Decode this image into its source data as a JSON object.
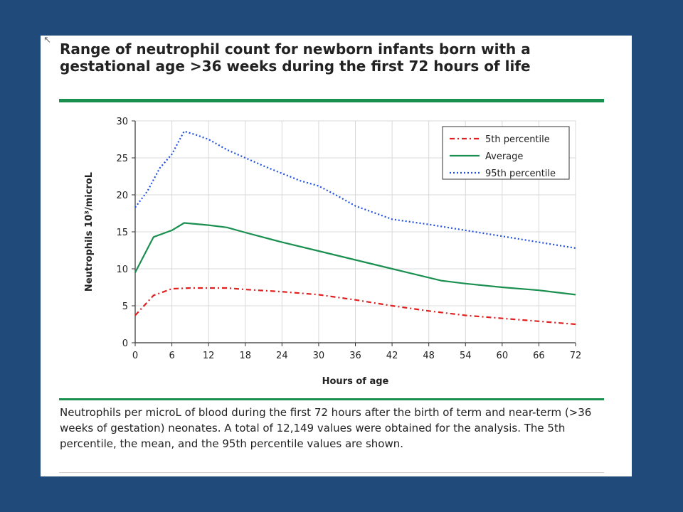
{
  "title": "Range of neutrophil count for newborn infants born with a gestational age >36 weeks during the first 72 hours of life",
  "caption": "Neutrophils per microL of blood during the first 72 hours after the birth of term and near-term (>36 weeks of gestation) neonates. A total of 12,149 values were obtained for the analysis. The 5th percentile, the mean, and the 95th percentile values are shown.",
  "colors": {
    "background": "#1f4a7a",
    "accent_rule": "#1a9050",
    "p5": "#e02020",
    "avg": "#1a9050",
    "p95": "#2050e0"
  },
  "chart_data": {
    "type": "line",
    "title": "",
    "xlabel": "Hours of age",
    "ylabel": "Neutrophils 10³/microL",
    "xlim": [
      0,
      72
    ],
    "ylim": [
      0,
      30
    ],
    "xticks": [
      0,
      6,
      12,
      18,
      24,
      30,
      36,
      42,
      48,
      54,
      60,
      66,
      72
    ],
    "yticks": [
      0,
      5,
      10,
      15,
      20,
      25,
      30
    ],
    "grid": true,
    "legend": "top-right",
    "series": [
      {
        "name": "5th percentile",
        "style": "dash-dot",
        "color": "#e02020",
        "points": [
          [
            0,
            3.7
          ],
          [
            3,
            6.4
          ],
          [
            6,
            7.3
          ],
          [
            9,
            7.4
          ],
          [
            12,
            7.4
          ],
          [
            15,
            7.4
          ],
          [
            18,
            7.2
          ],
          [
            24,
            6.9
          ],
          [
            30,
            6.5
          ],
          [
            36,
            5.8
          ],
          [
            42,
            5.0
          ],
          [
            48,
            4.3
          ],
          [
            54,
            3.7
          ],
          [
            60,
            3.3
          ],
          [
            66,
            2.9
          ],
          [
            72,
            2.5
          ]
        ]
      },
      {
        "name": "Average",
        "style": "solid",
        "color": "#1a9050",
        "points": [
          [
            0,
            9.5
          ],
          [
            3,
            14.3
          ],
          [
            6,
            15.2
          ],
          [
            8,
            16.2
          ],
          [
            12,
            15.9
          ],
          [
            15,
            15.6
          ],
          [
            18,
            14.9
          ],
          [
            24,
            13.6
          ],
          [
            30,
            12.4
          ],
          [
            36,
            11.2
          ],
          [
            42,
            10.0
          ],
          [
            50,
            8.4
          ],
          [
            54,
            8.0
          ],
          [
            60,
            7.5
          ],
          [
            66,
            7.1
          ],
          [
            72,
            6.5
          ]
        ]
      },
      {
        "name": "95th percentile",
        "style": "dotted",
        "color": "#2050e0",
        "points": [
          [
            0,
            18.3
          ],
          [
            2,
            20.5
          ],
          [
            4,
            23.6
          ],
          [
            6,
            25.5
          ],
          [
            8,
            28.6
          ],
          [
            10,
            28.1
          ],
          [
            12,
            27.5
          ],
          [
            15,
            26.1
          ],
          [
            18,
            25.0
          ],
          [
            21,
            23.9
          ],
          [
            24,
            22.9
          ],
          [
            27,
            21.9
          ],
          [
            30,
            21.2
          ],
          [
            33,
            19.9
          ],
          [
            36,
            18.5
          ],
          [
            42,
            16.7
          ],
          [
            48,
            16.0
          ],
          [
            54,
            15.2
          ],
          [
            60,
            14.4
          ],
          [
            66,
            13.6
          ],
          [
            72,
            12.8
          ]
        ]
      }
    ]
  }
}
